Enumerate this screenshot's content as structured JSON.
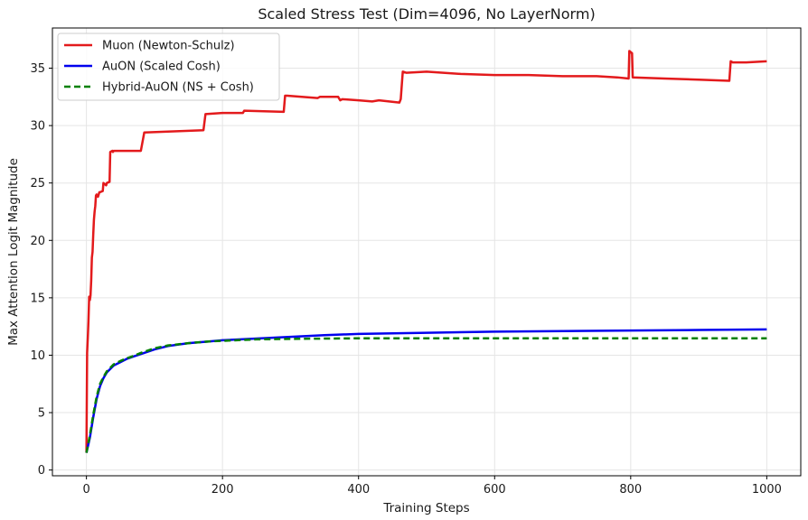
{
  "chart_data": {
    "type": "line",
    "title": "Scaled Stress Test (Dim=4096, No LayerNorm)",
    "xlabel": "Training Steps",
    "ylabel": "Max Attention Logit Magnitude",
    "xlim": [
      -50,
      1050
    ],
    "ylim": [
      -0.5,
      38.5
    ],
    "xticks": [
      0,
      200,
      400,
      600,
      800,
      1000
    ],
    "yticks": [
      0,
      5,
      10,
      15,
      20,
      25,
      30,
      35
    ],
    "grid": true,
    "legend_position": "top-left",
    "series": [
      {
        "name": "Muon (Newton-Schulz)",
        "color": "#e31a1c",
        "style": "solid",
        "x": [
          0,
          1,
          2,
          3,
          4,
          5,
          6,
          7,
          8,
          9,
          10,
          11,
          12,
          13,
          14,
          15,
          17,
          19,
          20,
          24,
          25,
          29,
          30,
          34,
          35,
          38,
          39,
          40,
          42,
          80,
          85,
          172,
          175,
          200,
          230,
          232,
          290,
          292,
          295,
          340,
          343,
          370,
          373,
          376,
          400,
          420,
          430,
          460,
          462,
          465,
          470,
          500,
          550,
          600,
          650,
          700,
          750,
          780,
          797,
          798,
          800,
          802,
          803,
          850,
          900,
          945,
          947,
          950,
          970,
          1000
        ],
        "y": [
          1.5,
          10.2,
          11.5,
          13.0,
          15.1,
          14.8,
          15.2,
          16.5,
          18.5,
          19.0,
          20.5,
          21.8,
          22.5,
          23.0,
          23.9,
          24.0,
          23.8,
          24.2,
          24.2,
          24.3,
          25.0,
          24.8,
          25.0,
          25.1,
          27.7,
          27.8,
          27.7,
          27.8,
          27.8,
          27.8,
          29.4,
          29.6,
          31.0,
          31.1,
          31.1,
          31.3,
          31.2,
          32.6,
          32.6,
          32.4,
          32.5,
          32.5,
          32.2,
          32.3,
          32.2,
          32.1,
          32.2,
          32.0,
          32.3,
          34.7,
          34.6,
          34.7,
          34.5,
          34.4,
          34.4,
          34.3,
          34.3,
          34.2,
          34.1,
          36.5,
          36.4,
          36.3,
          34.2,
          34.1,
          34.0,
          33.9,
          35.6,
          35.5,
          35.5,
          35.6
        ]
      },
      {
        "name": "AuON (Scaled Cosh)",
        "color": "#0000ee",
        "style": "solid",
        "x": [
          0,
          5,
          10,
          15,
          20,
          25,
          30,
          40,
          50,
          60,
          70,
          80,
          100,
          120,
          150,
          180,
          200,
          250,
          300,
          350,
          400,
          500,
          600,
          700,
          800,
          900,
          1000
        ],
        "y": [
          1.5,
          2.8,
          4.6,
          6.2,
          7.3,
          8.0,
          8.5,
          9.1,
          9.4,
          9.7,
          9.9,
          10.1,
          10.5,
          10.8,
          11.05,
          11.2,
          11.3,
          11.45,
          11.6,
          11.75,
          11.85,
          11.95,
          12.05,
          12.1,
          12.15,
          12.2,
          12.25
        ]
      },
      {
        "name": "Hybrid-AuON (NS + Cosh)",
        "color": "#008000",
        "style": "dashed",
        "x": [
          0,
          5,
          10,
          15,
          20,
          25,
          30,
          40,
          50,
          60,
          70,
          80,
          100,
          120,
          150,
          180,
          200,
          250,
          300,
          350,
          400,
          500,
          600,
          700,
          800,
          900,
          1000
        ],
        "y": [
          1.5,
          3.0,
          4.8,
          6.4,
          7.5,
          8.1,
          8.6,
          9.2,
          9.5,
          9.75,
          9.95,
          10.2,
          10.6,
          10.85,
          11.05,
          11.2,
          11.25,
          11.38,
          11.42,
          11.45,
          11.47,
          11.47,
          11.47,
          11.47,
          11.47,
          11.47,
          11.47
        ]
      }
    ]
  }
}
